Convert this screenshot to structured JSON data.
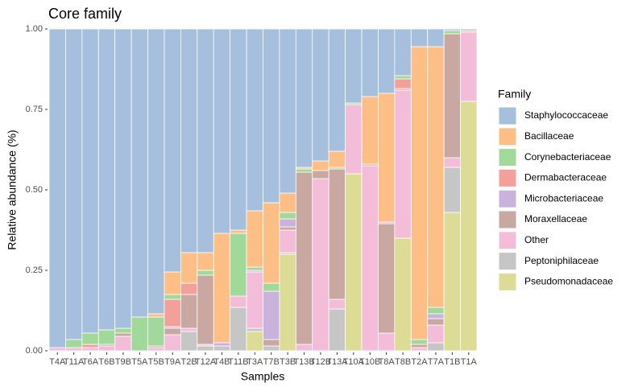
{
  "chart_data": {
    "type": "stacked_bar",
    "title": "Core family",
    "x_label": "Samples",
    "y_label": "Relative abundance (%)",
    "legend_title": "Family",
    "legend_position": "right",
    "categories": [
      "T4A",
      "T11A",
      "T6A",
      "T6B",
      "T9B",
      "T5A",
      "T5B",
      "T9A",
      "T2B",
      "T12A",
      "T4B",
      "T11B",
      "T3A",
      "T7B",
      "T3B",
      "T13B",
      "T12B",
      "T13A",
      "T10A",
      "T10B",
      "T8A",
      "T8B",
      "T2A",
      "T7A",
      "T1B",
      "T1A"
    ],
    "ylim": [
      0,
      1
    ],
    "yticks": [
      {
        "value": 0,
        "label": "0.00"
      },
      {
        "value": 0.25,
        "label": "0.25"
      },
      {
        "value": 0.5,
        "label": "0.50"
      },
      {
        "value": 0.75,
        "label": "0.75"
      },
      {
        "value": 1,
        "label": "1.00"
      }
    ],
    "series": [
      {
        "name": "Staphylococcaceae",
        "color": "#a6bfdd",
        "values": [
          0.99,
          0.965,
          0.945,
          0.935,
          0.93,
          0.895,
          0.885,
          0.755,
          0.695,
          0.695,
          0.635,
          0.625,
          0.565,
          0.54,
          0.51,
          0.43,
          0.41,
          0.38,
          0.23,
          0.21,
          0.2,
          0.145,
          0.055,
          0.055,
          0.005,
          0.005
        ]
      },
      {
        "name": "Bacillaceae",
        "color": "#fdbf86",
        "values": [
          0,
          0,
          0,
          0,
          0,
          0,
          0.01,
          0.07,
          0.095,
          0.055,
          0.34,
          0.01,
          0.175,
          0.25,
          0.06,
          0.005,
          0.03,
          0.05,
          0,
          0.21,
          0.4,
          0,
          0.91,
          0.81,
          0,
          0.005
        ]
      },
      {
        "name": "Corynebacteriaceae",
        "color": "#a1d99b",
        "values": [
          0,
          0.025,
          0.035,
          0.045,
          0.015,
          0.105,
          0.09,
          0.015,
          0,
          0.015,
          0,
          0.195,
          0.01,
          0.025,
          0.02,
          0.01,
          0,
          0.005,
          0.005,
          0,
          0,
          0.01,
          0.015,
          0.02,
          0.01,
          0
        ]
      },
      {
        "name": "Dermabacteraceae",
        "color": "#f4a09a",
        "values": [
          0,
          0,
          0.01,
          0,
          0,
          0,
          0,
          0.085,
          0.035,
          0,
          0,
          0,
          0,
          0,
          0,
          0,
          0,
          0,
          0,
          0,
          0,
          0.03,
          0,
          0,
          0,
          0
        ]
      },
      {
        "name": "Microbacteriaceae",
        "color": "#c9b3dc",
        "values": [
          0,
          0,
          0,
          0,
          0,
          0,
          0,
          0.005,
          0,
          0,
          0.01,
          0,
          0.005,
          0.15,
          0.025,
          0,
          0,
          0,
          0,
          0,
          0.005,
          0,
          0,
          0.015,
          0,
          0
        ]
      },
      {
        "name": "Moraxellaceae",
        "color": "#c9a8a2",
        "values": [
          0,
          0,
          0,
          0.005,
          0.01,
          0,
          0.005,
          0.02,
          0.105,
          0.215,
          0,
          0,
          0,
          0.02,
          0.01,
          0.535,
          0.025,
          0.405,
          0,
          0.005,
          0.34,
          0.005,
          0.01,
          0.02,
          0.385,
          0
        ]
      },
      {
        "name": "Other",
        "color": "#f3bcd9",
        "values": [
          0.01,
          0.01,
          0.01,
          0.015,
          0.045,
          0,
          0.01,
          0.05,
          0.01,
          0.005,
          0,
          0.035,
          0.175,
          0,
          0.07,
          0.02,
          0.535,
          0.03,
          0.215,
          0.575,
          0.055,
          0.46,
          0.01,
          0.055,
          0.03,
          0.215
        ]
      },
      {
        "name": "Peptoniphilaceae",
        "color": "#c6c6c6",
        "values": [
          0,
          0,
          0,
          0,
          0,
          0,
          0,
          0,
          0.06,
          0.015,
          0.015,
          0.135,
          0.01,
          0.015,
          0.005,
          0,
          0,
          0.13,
          0,
          0,
          0,
          0,
          0,
          0.025,
          0.14,
          0
        ]
      },
      {
        "name": "Pseudomonadaceae",
        "color": "#dcdc97",
        "values": [
          0,
          0,
          0,
          0,
          0,
          0,
          0,
          0,
          0,
          0,
          0,
          0,
          0.06,
          0,
          0.3,
          0,
          0,
          0,
          0.55,
          0,
          0,
          0.35,
          0,
          0,
          0.43,
          0.775
        ]
      }
    ]
  }
}
